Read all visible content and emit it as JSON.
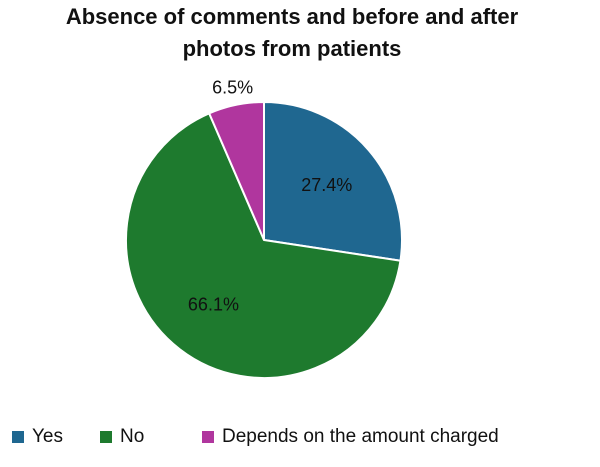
{
  "chart_data": {
    "type": "pie",
    "title": [
      "Absence of comments and before and after",
      "photos from patients"
    ],
    "categories": [
      "Yes",
      "No",
      "Depends on the amount charged"
    ],
    "values": [
      27.4,
      66.1,
      6.5
    ],
    "value_labels": [
      "27.4%",
      "66.1%",
      "6.5%"
    ],
    "colors": [
      "#1f6790",
      "#1e7a2e",
      "#b0369e"
    ],
    "legend": "bottom"
  }
}
